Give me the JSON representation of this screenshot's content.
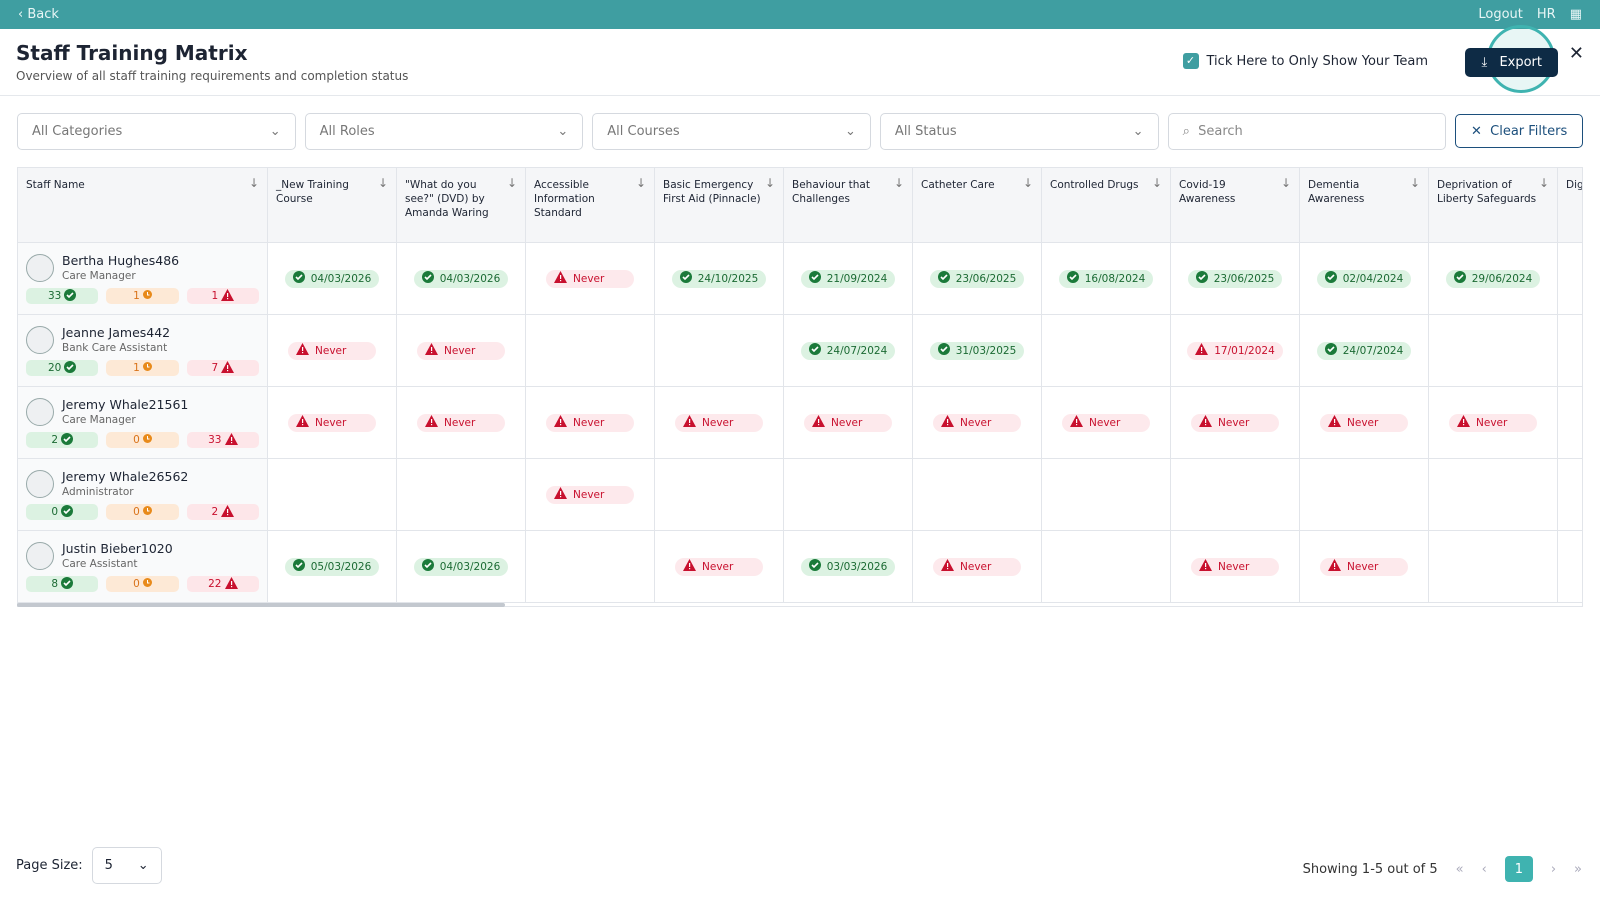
{
  "topbar": {
    "back": "Back",
    "logout": "Logout",
    "user": "HR"
  },
  "header": {
    "title": "Staff Training Matrix",
    "subtitle": "Overview of all staff training requirements and completion status",
    "team_toggle": "Tick Here to Only Show Your Team",
    "export": "Export"
  },
  "filters": {
    "selects": [
      "All Categories",
      "All Roles",
      "All Courses",
      "All Status"
    ],
    "search": "Search",
    "clear": "Clear Filters"
  },
  "table": {
    "columns": [
      "Staff Name",
      "_New Training Course",
      "\"What do you see?\" (DVD) by Amanda Waring",
      "Accessible Information Standard",
      "Basic Emergency First Aid (Pinnacle)",
      "Behaviour that Challenges",
      "Catheter Care",
      "Controlled Drugs",
      "Covid-19 Awareness",
      "Dementia Awareness",
      "Deprivation of Liberty Safeguards",
      "Dig"
    ],
    "rows": [
      {
        "name": "Bertha Hughes486",
        "role": "Care Manager",
        "counts": [
          33,
          1,
          1
        ],
        "cells": [
          {
            "state": "valid",
            "text": "04/03/2026"
          },
          {
            "state": "valid",
            "text": "04/03/2026"
          },
          {
            "state": "never",
            "text": "Never"
          },
          {
            "state": "valid",
            "text": "24/10/2025"
          },
          {
            "state": "valid",
            "text": "21/09/2024"
          },
          {
            "state": "valid",
            "text": "23/06/2025"
          },
          {
            "state": "valid",
            "text": "16/08/2024"
          },
          {
            "state": "valid",
            "text": "23/06/2025"
          },
          {
            "state": "valid",
            "text": "02/04/2024"
          },
          {
            "state": "valid",
            "text": "29/06/2024"
          },
          null
        ]
      },
      {
        "name": "Jeanne James442",
        "role": "Bank Care Assistant",
        "counts": [
          20,
          1,
          7
        ],
        "cells": [
          {
            "state": "never",
            "text": "Never"
          },
          {
            "state": "never",
            "text": "Never"
          },
          null,
          null,
          {
            "state": "valid",
            "text": "24/07/2024"
          },
          {
            "state": "valid",
            "text": "31/03/2025"
          },
          null,
          {
            "state": "expired",
            "text": "17/01/2024"
          },
          {
            "state": "valid",
            "text": "24/07/2024"
          },
          null,
          null
        ]
      },
      {
        "name": "Jeremy Whale21561",
        "role": "Care Manager",
        "counts": [
          2,
          0,
          33
        ],
        "cells": [
          {
            "state": "never",
            "text": "Never"
          },
          {
            "state": "never",
            "text": "Never"
          },
          {
            "state": "never",
            "text": "Never"
          },
          {
            "state": "never",
            "text": "Never"
          },
          {
            "state": "never",
            "text": "Never"
          },
          {
            "state": "never",
            "text": "Never"
          },
          {
            "state": "never",
            "text": "Never"
          },
          {
            "state": "never",
            "text": "Never"
          },
          {
            "state": "never",
            "text": "Never"
          },
          {
            "state": "never",
            "text": "Never"
          },
          null
        ]
      },
      {
        "name": "Jeremy Whale26562",
        "role": "Administrator",
        "counts": [
          0,
          0,
          2
        ],
        "cells": [
          null,
          null,
          {
            "state": "never",
            "text": "Never"
          },
          null,
          null,
          null,
          null,
          null,
          null,
          null,
          null
        ]
      },
      {
        "name": "Justin Bieber1020",
        "role": "Care Assistant",
        "counts": [
          8,
          0,
          22
        ],
        "cells": [
          {
            "state": "valid",
            "text": "05/03/2026"
          },
          {
            "state": "valid",
            "text": "04/03/2026"
          },
          null,
          {
            "state": "never",
            "text": "Never"
          },
          {
            "state": "valid",
            "text": "03/03/2026"
          },
          {
            "state": "never",
            "text": "Never"
          },
          null,
          {
            "state": "never",
            "text": "Never"
          },
          {
            "state": "never",
            "text": "Never"
          },
          null,
          null
        ]
      }
    ]
  },
  "footer": {
    "page_size_label": "Page Size:",
    "page_size": 5,
    "showing": "Showing 1-5 out of 5",
    "current_page": 1
  }
}
